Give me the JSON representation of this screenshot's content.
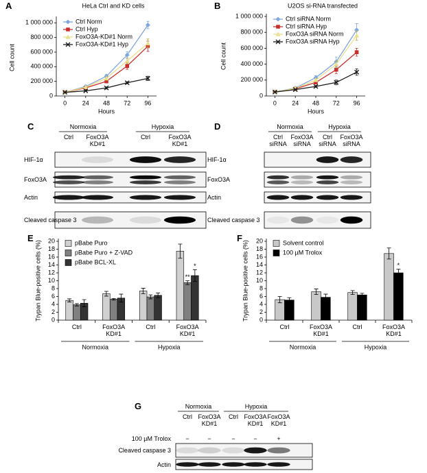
{
  "chart_data": [
    {
      "panel": "A",
      "type": "line",
      "title": "HeLa Ctrl and KD cells",
      "xlabel": "Hours",
      "ylabel": "Cell count",
      "x": [
        0,
        24,
        48,
        72,
        96
      ],
      "xlim": [
        -10,
        106
      ],
      "xticks": [
        0,
        24,
        48,
        72,
        96
      ],
      "ylim": [
        0,
        1050000
      ],
      "yticks": [
        0,
        {
          "value": 200000,
          "label": "200 000"
        },
        {
          "value": 400000,
          "label": "400 000"
        },
        {
          "value": 600000,
          "label": "600 000"
        },
        {
          "value": 800000,
          "label": "800 000"
        },
        {
          "value": 1000000,
          "label": "1 000 000"
        }
      ],
      "legend": "upper left",
      "series": [
        {
          "name": "Ctrl Norm",
          "color": "#7ea6e0",
          "marker": "diamond",
          "values": [
            50000,
            130000,
            270000,
            560000,
            970000
          ],
          "errors": [
            10000,
            15000,
            25000,
            45000,
            50000
          ]
        },
        {
          "name": "Ctrl Hyp",
          "color": "#c9302c",
          "marker": "square",
          "values": [
            50000,
            110000,
            200000,
            410000,
            680000
          ],
          "errors": [
            8000,
            12000,
            20000,
            45000,
            70000
          ]
        },
        {
          "name": "FoxO3A-KD#1 Norm",
          "color": "#eadf8c",
          "marker": "triangle",
          "values": [
            50000,
            120000,
            240000,
            480000,
            720000
          ],
          "errors": [
            8000,
            12000,
            20000,
            40000,
            60000
          ]
        },
        {
          "name": "FoxO3A-KD#1 Hyp",
          "color": "#1a1a1a",
          "marker": "x",
          "values": [
            50000,
            70000,
            110000,
            180000,
            240000
          ],
          "errors": [
            5000,
            8000,
            15000,
            15000,
            30000
          ]
        }
      ]
    },
    {
      "panel": "B",
      "type": "line",
      "title": "U2OS si-RNA transfected",
      "xlabel": "Hours",
      "ylabel": "Cell count",
      "x": [
        0,
        24,
        48,
        72,
        96
      ],
      "xlim": [
        -10,
        106
      ],
      "xticks": [
        0,
        24,
        48,
        72,
        96
      ],
      "ylim": [
        0,
        1000000
      ],
      "yticks": [
        0,
        {
          "value": 200000,
          "label": "200 000"
        },
        {
          "value": 400000,
          "label": "400 000"
        },
        {
          "value": 600000,
          "label": "600 000"
        },
        {
          "value": 800000,
          "label": "800 000"
        },
        {
          "value": 1000000,
          "label": "1 000 000"
        }
      ],
      "legend": "upper left",
      "series": [
        {
          "name": "Ctrl siRNA Norm",
          "color": "#7ea6e0",
          "marker": "diamond",
          "values": [
            50000,
            100000,
            230000,
            430000,
            830000
          ],
          "errors": [
            8000,
            12000,
            25000,
            60000,
            80000
          ]
        },
        {
          "name": "Ctrl siRNA Hyp",
          "color": "#c9302c",
          "marker": "square",
          "values": [
            50000,
            90000,
            170000,
            330000,
            550000
          ],
          "errors": [
            8000,
            12000,
            20000,
            50000,
            50000
          ]
        },
        {
          "name": "FoxO3A siRNA Norm",
          "color": "#eadf8c",
          "marker": "triangle",
          "values": [
            50000,
            95000,
            200000,
            400000,
            760000
          ],
          "errors": [
            8000,
            12000,
            20000,
            45000,
            60000
          ]
        },
        {
          "name": "FoxO3A siRNA Hyp",
          "color": "#1a1a1a",
          "marker": "x",
          "values": [
            50000,
            80000,
            120000,
            170000,
            300000
          ],
          "errors": [
            5000,
            8000,
            12000,
            30000,
            40000
          ]
        }
      ]
    },
    {
      "panel": "E",
      "type": "bar",
      "ylabel": "Trypan Blue-positive cells (%)",
      "categories": [
        "Ctrl",
        "FoxO3A\nKD#1",
        "Ctrl",
        "FoxO3A\nKD#1"
      ],
      "group_labels": [
        "Normoxia",
        "Hypoxia"
      ],
      "ylim": [
        0,
        20
      ],
      "yticks": [
        0,
        2,
        4,
        6,
        8,
        10,
        12,
        14,
        16,
        18,
        20
      ],
      "legend": "upper left",
      "series": [
        {
          "name": "pBabe Puro",
          "color": "#d0d0d0",
          "values": [
            5.0,
            6.7,
            7.4,
            17.5
          ],
          "errors": [
            0.4,
            0.6,
            0.7,
            1.8
          ],
          "significance": [
            null,
            null,
            null,
            null
          ]
        },
        {
          "name": "pBabe Puro + Z-VAD",
          "color": "#808080",
          "values": [
            3.9,
            5.3,
            5.9,
            9.5
          ],
          "errors": [
            0.3,
            0.2,
            0.5,
            0.5
          ],
          "significance": [
            null,
            null,
            null,
            "**"
          ]
        },
        {
          "name": "pBabe BCL-XL",
          "color": "#333333",
          "values": [
            4.3,
            5.6,
            6.3,
            11.3
          ],
          "errors": [
            0.9,
            1.0,
            0.6,
            1.5
          ],
          "significance": [
            null,
            null,
            null,
            "*"
          ]
        }
      ]
    },
    {
      "panel": "F",
      "type": "bar",
      "ylabel": "Trypan Blue-positive cells (%)",
      "categories": [
        "Ctrl",
        "FoxO3A\nKD#1",
        "Ctrl",
        "FoxO3A\nKD#1"
      ],
      "group_labels": [
        "Normoxia",
        "Hypoxia"
      ],
      "ylim": [
        0,
        20
      ],
      "yticks": [
        0,
        2,
        4,
        6,
        8,
        10,
        12,
        14,
        16,
        18,
        20
      ],
      "legend": "upper left",
      "series": [
        {
          "name": "Solvent control",
          "color": "#c8c8c8",
          "values": [
            5.2,
            7.2,
            7.0,
            16.9
          ],
          "errors": [
            0.8,
            0.7,
            0.5,
            1.4
          ],
          "significance": [
            null,
            null,
            null,
            null
          ]
        },
        {
          "name": "100 µM Trolox",
          "color": "#000000",
          "values": [
            5.1,
            5.8,
            6.4,
            12.0
          ],
          "errors": [
            0.6,
            0.8,
            0.4,
            0.9
          ],
          "significance": [
            null,
            null,
            null,
            "*"
          ]
        }
      ]
    }
  ],
  "blots": [
    {
      "panel": "C",
      "groups": [
        {
          "label": "Normoxia",
          "lanes": [
            "Ctrl",
            "FoxO3A\nKD#1"
          ]
        },
        {
          "label": "Hypoxia",
          "lanes": [
            "Ctrl",
            "FoxO3A\nKD#1"
          ]
        }
      ],
      "rows": [
        "HIF-1α",
        "FoxO3A",
        "Actin",
        "Cleaved caspase 3"
      ]
    },
    {
      "panel": "D",
      "groups": [
        {
          "label": "Normoxia",
          "lanes": [
            "Ctrl\nsiRNA",
            "FoxO3A\nsiRNA"
          ]
        },
        {
          "label": "Hypoxia",
          "lanes": [
            "Ctrl\nsiRNA",
            "FoxO3A\nsiRNA"
          ]
        }
      ],
      "rows": [
        "HIF-1α",
        "FoxO3A",
        "Actin",
        "Cleaved caspase 3"
      ]
    },
    {
      "panel": "G",
      "groups": [
        {
          "label": "Normoxia",
          "lanes": [
            "Ctrl",
            "FoxO3A\nKD#1"
          ]
        },
        {
          "label": "Hypoxia",
          "lanes": [
            "Ctrl",
            "FoxO3A\nKD#1",
            "FoxO3A\nKD#1"
          ]
        }
      ],
      "treatment": {
        "label": "100 µM Trolox",
        "signs": [
          "−",
          "−",
          "−",
          "−",
          "+"
        ]
      },
      "rows": [
        "Cleaved caspase 3",
        "Actin"
      ]
    }
  ]
}
